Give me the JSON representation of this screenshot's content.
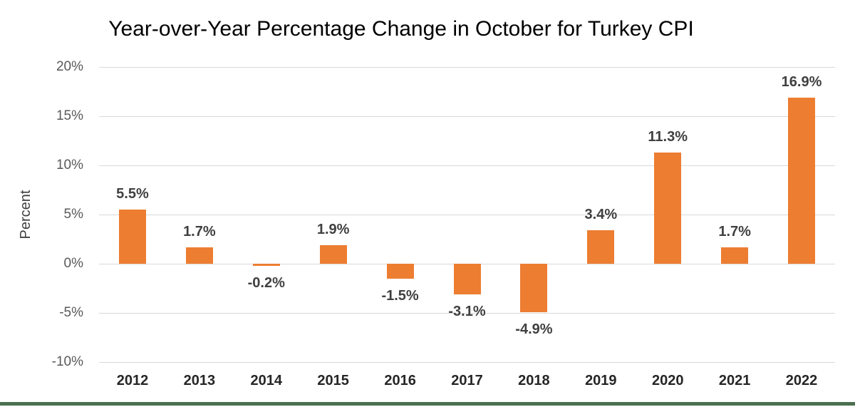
{
  "chart_data": {
    "type": "bar",
    "title": "Year-over-Year Percentage Change in October for Turkey CPI",
    "xlabel": "",
    "ylabel": "Percent",
    "categories": [
      "2012",
      "2013",
      "2014",
      "2015",
      "2016",
      "2017",
      "2018",
      "2019",
      "2020",
      "2021",
      "2022"
    ],
    "values": [
      5.5,
      1.7,
      -0.2,
      1.9,
      -1.5,
      -3.1,
      -4.9,
      3.4,
      11.3,
      1.7,
      16.9
    ],
    "data_labels": [
      "5.5%",
      "1.7%",
      "-0.2%",
      "1.9%",
      "-1.5%",
      "-3.1%",
      "-4.9%",
      "3.4%",
      "11.3%",
      "1.7%",
      "16.9%"
    ],
    "y_ticks": [
      {
        "value": 20,
        "label": "20%"
      },
      {
        "value": 15,
        "label": "15%"
      },
      {
        "value": 10,
        "label": "10%"
      },
      {
        "value": 5,
        "label": "5%"
      },
      {
        "value": 0,
        "label": "0%"
      },
      {
        "value": -5,
        "label": "-5%"
      },
      {
        "value": -10,
        "label": "-10%"
      }
    ],
    "ylim": [
      -10,
      20
    ],
    "grid": true,
    "legend": false,
    "colors": {
      "bar": "#ED7D31",
      "gridline": "#D9D9D9",
      "data_label": "#404040",
      "y_tick_label": "#595959",
      "x_tick_label": "#262626",
      "title": "#000000",
      "bottom_accent": "#4B7050",
      "background": "#FFFFFF"
    }
  }
}
